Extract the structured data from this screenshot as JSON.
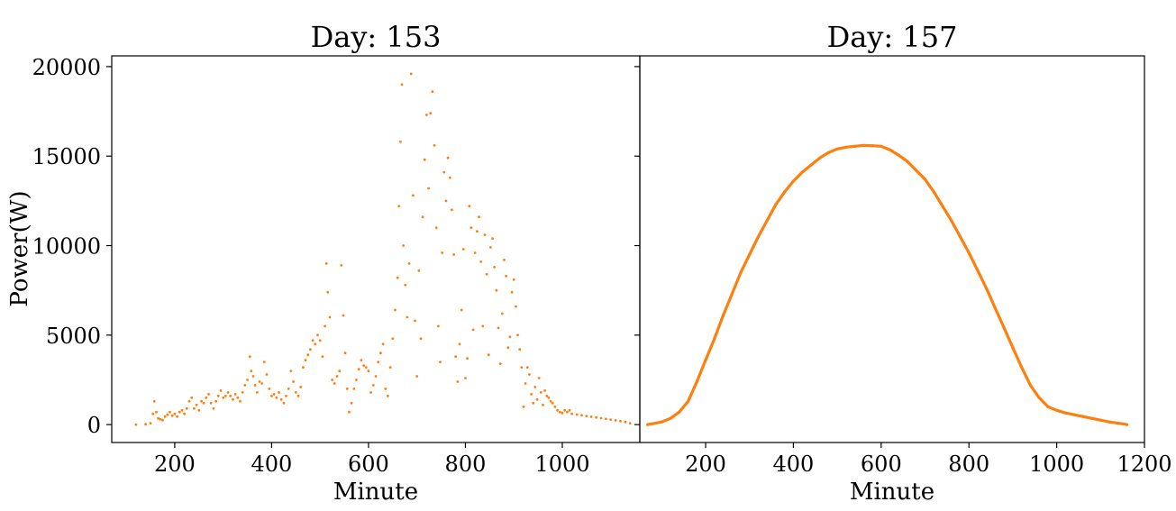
{
  "chart_data": [
    {
      "type": "scatter",
      "title": "Day: 153",
      "xlabel": "Minute",
      "ylabel": "Power(W)",
      "xlim": [
        70,
        1160
      ],
      "ylim": [
        -1000,
        20600
      ],
      "xticks": [
        200,
        400,
        600,
        800,
        1000
      ],
      "yticks": [
        0,
        5000,
        10000,
        15000,
        20000
      ],
      "marker_color": "#ff7f0e",
      "points": [
        [
          120,
          0
        ],
        [
          140,
          20
        ],
        [
          150,
          80
        ],
        [
          155,
          600
        ],
        [
          158,
          1300
        ],
        [
          162,
          700
        ],
        [
          166,
          350
        ],
        [
          170,
          300
        ],
        [
          175,
          250
        ],
        [
          180,
          450
        ],
        [
          185,
          550
        ],
        [
          190,
          700
        ],
        [
          195,
          500
        ],
        [
          200,
          600
        ],
        [
          205,
          450
        ],
        [
          210,
          700
        ],
        [
          215,
          800
        ],
        [
          220,
          600
        ],
        [
          225,
          900
        ],
        [
          230,
          1300
        ],
        [
          235,
          1500
        ],
        [
          240,
          900
        ],
        [
          245,
          1100
        ],
        [
          250,
          800
        ],
        [
          255,
          1300
        ],
        [
          260,
          1200
        ],
        [
          265,
          1500
        ],
        [
          270,
          1700
        ],
        [
          275,
          1200
        ],
        [
          280,
          900
        ],
        [
          285,
          1300
        ],
        [
          290,
          1600
        ],
        [
          295,
          1900
        ],
        [
          300,
          1500
        ],
        [
          305,
          1600
        ],
        [
          310,
          1800
        ],
        [
          315,
          1600
        ],
        [
          320,
          1400
        ],
        [
          325,
          1700
        ],
        [
          330,
          1500
        ],
        [
          335,
          1300
        ],
        [
          340,
          1800
        ],
        [
          345,
          2200
        ],
        [
          350,
          2500
        ],
        [
          355,
          3800
        ],
        [
          358,
          3000
        ],
        [
          362,
          2700
        ],
        [
          366,
          2200
        ],
        [
          370,
          1800
        ],
        [
          375,
          2400
        ],
        [
          380,
          2300
        ],
        [
          385,
          3500
        ],
        [
          390,
          2800
        ],
        [
          395,
          2000
        ],
        [
          400,
          1600
        ],
        [
          405,
          1700
        ],
        [
          410,
          1500
        ],
        [
          415,
          1800
        ],
        [
          420,
          1400
        ],
        [
          425,
          1200
        ],
        [
          430,
          1600
        ],
        [
          435,
          2000
        ],
        [
          440,
          3000
        ],
        [
          445,
          2400
        ],
        [
          450,
          1800
        ],
        [
          455,
          1600
        ],
        [
          460,
          2100
        ],
        [
          465,
          3200
        ],
        [
          470,
          3600
        ],
        [
          475,
          3900
        ],
        [
          480,
          4200
        ],
        [
          485,
          4700
        ],
        [
          490,
          4500
        ],
        [
          495,
          5000
        ],
        [
          500,
          4700
        ],
        [
          505,
          3800
        ],
        [
          510,
          5500
        ],
        [
          513,
          9000
        ],
        [
          516,
          7400
        ],
        [
          520,
          6000
        ],
        [
          525,
          2500
        ],
        [
          530,
          2300
        ],
        [
          535,
          2700
        ],
        [
          540,
          3000
        ],
        [
          544,
          8900
        ],
        [
          548,
          6100
        ],
        [
          552,
          4000
        ],
        [
          556,
          2000
        ],
        [
          560,
          700
        ],
        [
          565,
          1200
        ],
        [
          570,
          2000
        ],
        [
          575,
          2500
        ],
        [
          580,
          3100
        ],
        [
          585,
          3600
        ],
        [
          590,
          3300
        ],
        [
          595,
          3200
        ],
        [
          600,
          3000
        ],
        [
          605,
          1800
        ],
        [
          610,
          2200
        ],
        [
          615,
          2700
        ],
        [
          620,
          3500
        ],
        [
          625,
          4000
        ],
        [
          630,
          4500
        ],
        [
          635,
          2000
        ],
        [
          640,
          1600
        ],
        [
          645,
          3200
        ],
        [
          650,
          4800
        ],
        [
          655,
          6400
        ],
        [
          660,
          8200
        ],
        [
          663,
          12200
        ],
        [
          666,
          15800
        ],
        [
          669,
          19000
        ],
        [
          672,
          10000
        ],
        [
          676,
          7800
        ],
        [
          680,
          6000
        ],
        [
          684,
          9000
        ],
        [
          688,
          19600
        ],
        [
          692,
          12800
        ],
        [
          696,
          5800
        ],
        [
          700,
          2700
        ],
        [
          704,
          8600
        ],
        [
          708,
          4800
        ],
        [
          712,
          11600
        ],
        [
          716,
          14800
        ],
        [
          720,
          17300
        ],
        [
          724,
          13200
        ],
        [
          728,
          17400
        ],
        [
          732,
          18600
        ],
        [
          736,
          15600
        ],
        [
          740,
          11000
        ],
        [
          744,
          5500
        ],
        [
          748,
          3500
        ],
        [
          752,
          9600
        ],
        [
          756,
          14100
        ],
        [
          760,
          12500
        ],
        [
          764,
          14900
        ],
        [
          768,
          13800
        ],
        [
          772,
          12000
        ],
        [
          776,
          9500
        ],
        [
          780,
          3800
        ],
        [
          784,
          2400
        ],
        [
          788,
          4500
        ],
        [
          792,
          6400
        ],
        [
          796,
          9800
        ],
        [
          800,
          2600
        ],
        [
          804,
          3700
        ],
        [
          808,
          12200
        ],
        [
          812,
          11000
        ],
        [
          816,
          5300
        ],
        [
          820,
          9600
        ],
        [
          824,
          10800
        ],
        [
          828,
          11600
        ],
        [
          832,
          9100
        ],
        [
          836,
          5500
        ],
        [
          840,
          10600
        ],
        [
          844,
          8400
        ],
        [
          848,
          3900
        ],
        [
          852,
          9900
        ],
        [
          856,
          10400
        ],
        [
          860,
          8800
        ],
        [
          864,
          7500
        ],
        [
          868,
          5400
        ],
        [
          872,
          3400
        ],
        [
          876,
          6200
        ],
        [
          880,
          9200
        ],
        [
          884,
          8300
        ],
        [
          888,
          4300
        ],
        [
          892,
          4900
        ],
        [
          896,
          7400
        ],
        [
          900,
          8100
        ],
        [
          904,
          6600
        ],
        [
          908,
          5000
        ],
        [
          912,
          4200
        ],
        [
          916,
          3200
        ],
        [
          920,
          1000
        ],
        [
          924,
          2300
        ],
        [
          928,
          3200
        ],
        [
          932,
          2800
        ],
        [
          936,
          1700
        ],
        [
          940,
          1200
        ],
        [
          944,
          2100
        ],
        [
          948,
          1400
        ],
        [
          952,
          2600
        ],
        [
          956,
          1800
        ],
        [
          960,
          1100
        ],
        [
          964,
          1900
        ],
        [
          968,
          1600
        ],
        [
          972,
          1500
        ],
        [
          976,
          1300
        ],
        [
          980,
          1200
        ],
        [
          985,
          1000
        ],
        [
          990,
          800
        ],
        [
          995,
          700
        ],
        [
          1000,
          650
        ],
        [
          1005,
          800
        ],
        [
          1010,
          700
        ],
        [
          1015,
          800
        ],
        [
          1020,
          600
        ],
        [
          1030,
          560
        ],
        [
          1040,
          520
        ],
        [
          1050,
          480
        ],
        [
          1060,
          440
        ],
        [
          1070,
          400
        ],
        [
          1080,
          360
        ],
        [
          1090,
          320
        ],
        [
          1100,
          280
        ],
        [
          1110,
          240
        ],
        [
          1120,
          200
        ],
        [
          1130,
          150
        ],
        [
          1140,
          80
        ]
      ]
    },
    {
      "type": "line",
      "title": "Day: 157",
      "xlabel": "Minute",
      "ylabel": "",
      "xlim": [
        50,
        1200
      ],
      "ylim": [
        -1000,
        20600
      ],
      "xticks": [
        200,
        400,
        600,
        800,
        1000,
        1200
      ],
      "yticks": [
        0,
        5000,
        10000,
        15000,
        20000
      ],
      "marker_color": "#ff7f0e",
      "points": [
        [
          68,
          0
        ],
        [
          80,
          50
        ],
        [
          100,
          150
        ],
        [
          120,
          350
        ],
        [
          140,
          700
        ],
        [
          160,
          1300
        ],
        [
          180,
          2400
        ],
        [
          200,
          3600
        ],
        [
          220,
          4800
        ],
        [
          240,
          6100
        ],
        [
          260,
          7300
        ],
        [
          280,
          8500
        ],
        [
          300,
          9500
        ],
        [
          320,
          10500
        ],
        [
          340,
          11400
        ],
        [
          360,
          12300
        ],
        [
          380,
          13000
        ],
        [
          400,
          13600
        ],
        [
          420,
          14100
        ],
        [
          440,
          14500
        ],
        [
          460,
          14900
        ],
        [
          480,
          15200
        ],
        [
          500,
          15400
        ],
        [
          520,
          15500
        ],
        [
          540,
          15550
        ],
        [
          560,
          15600
        ],
        [
          580,
          15580
        ],
        [
          600,
          15550
        ],
        [
          620,
          15350
        ],
        [
          640,
          15050
        ],
        [
          660,
          14700
        ],
        [
          680,
          14200
        ],
        [
          700,
          13700
        ],
        [
          720,
          13000
        ],
        [
          740,
          12200
        ],
        [
          760,
          11400
        ],
        [
          780,
          10500
        ],
        [
          800,
          9600
        ],
        [
          820,
          8600
        ],
        [
          840,
          7600
        ],
        [
          860,
          6500
        ],
        [
          880,
          5400
        ],
        [
          900,
          4300
        ],
        [
          920,
          3200
        ],
        [
          940,
          2200
        ],
        [
          960,
          1500
        ],
        [
          980,
          1000
        ],
        [
          1000,
          800
        ],
        [
          1020,
          650
        ],
        [
          1040,
          550
        ],
        [
          1060,
          450
        ],
        [
          1080,
          350
        ],
        [
          1100,
          250
        ],
        [
          1120,
          150
        ],
        [
          1140,
          80
        ],
        [
          1160,
          0
        ]
      ]
    }
  ]
}
